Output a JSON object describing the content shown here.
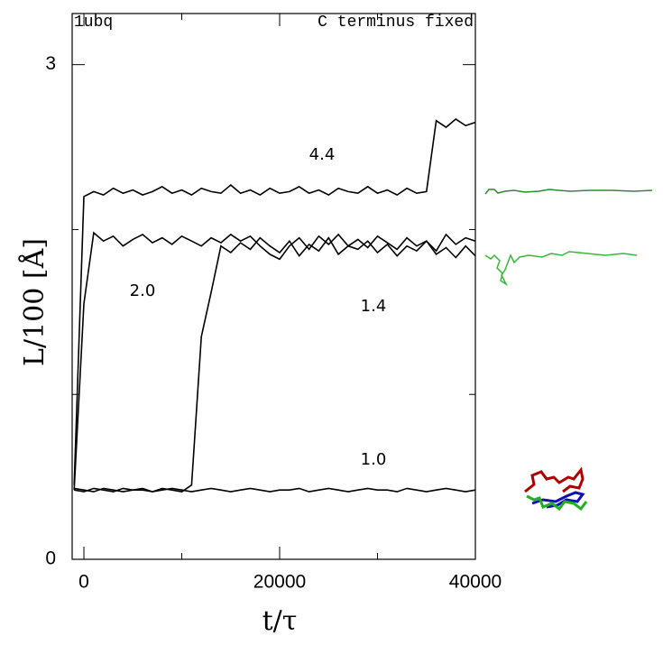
{
  "chart_data": {
    "type": "line",
    "title": "1ubq",
    "subtitle": "C terminus fixed",
    "x_label": "t/τ",
    "y_label": "L/100 [Å]",
    "xlim": [
      -1200,
      40000
    ],
    "ylim": [
      0,
      3.31
    ],
    "xticks": [
      0,
      20000,
      40000
    ],
    "x_minor_ticks": [
      10000,
      30000
    ],
    "yticks": [
      0,
      3
    ],
    "y_minor_ticks": [
      1,
      2
    ],
    "x": [
      -1000,
      0,
      1000,
      2000,
      3000,
      4000,
      5000,
      6000,
      7000,
      8000,
      9000,
      10000,
      11000,
      12000,
      13000,
      14000,
      15000,
      16000,
      17000,
      18000,
      19000,
      20000,
      21000,
      22000,
      23000,
      24000,
      25000,
      26000,
      27000,
      28000,
      29000,
      30000,
      31000,
      32000,
      33000,
      34000,
      35000,
      36000,
      37000,
      38000,
      39000,
      40000
    ],
    "series": [
      {
        "name": "4.4",
        "color": "#000000",
        "values": [
          0.45,
          2.2,
          2.23,
          2.21,
          2.25,
          2.22,
          2.24,
          2.21,
          2.23,
          2.26,
          2.22,
          2.24,
          2.21,
          2.25,
          2.23,
          2.22,
          2.27,
          2.22,
          2.24,
          2.21,
          2.25,
          2.22,
          2.23,
          2.26,
          2.22,
          2.24,
          2.21,
          2.25,
          2.23,
          2.22,
          2.26,
          2.22,
          2.24,
          2.21,
          2.25,
          2.22,
          2.23,
          2.66,
          2.62,
          2.67,
          2.63,
          2.65
        ]
      },
      {
        "name": "2.0",
        "color": "#000000",
        "values": [
          0.42,
          1.55,
          1.98,
          1.93,
          1.96,
          1.9,
          1.94,
          1.97,
          1.92,
          1.95,
          1.91,
          1.96,
          1.93,
          1.9,
          1.95,
          1.92,
          1.97,
          1.93,
          1.96,
          1.9,
          1.85,
          1.82,
          1.9,
          1.95,
          1.88,
          1.96,
          1.91,
          1.97,
          1.9,
          1.94,
          1.89,
          1.96,
          1.92,
          1.88,
          1.95,
          1.9,
          1.93,
          1.87,
          1.97,
          1.91,
          1.95,
          1.93
        ]
      },
      {
        "name": "1.4",
        "color": "#000000",
        "values": [
          0.42,
          0.41,
          0.43,
          0.42,
          0.41,
          0.43,
          0.42,
          0.42,
          0.41,
          0.43,
          0.42,
          0.41,
          0.45,
          1.35,
          1.62,
          1.9,
          1.86,
          1.92,
          1.88,
          1.95,
          1.9,
          1.86,
          1.93,
          1.84,
          1.91,
          1.87,
          1.95,
          1.85,
          1.9,
          1.88,
          1.93,
          1.86,
          1.91,
          1.84,
          1.9,
          1.87,
          1.93,
          1.85,
          1.89,
          1.83,
          1.9,
          1.84
        ]
      },
      {
        "name": "1.0",
        "color": "#000000",
        "values": [
          0.43,
          0.42,
          0.41,
          0.43,
          0.42,
          0.41,
          0.42,
          0.43,
          0.41,
          0.42,
          0.43,
          0.42,
          0.41,
          0.42,
          0.43,
          0.42,
          0.41,
          0.42,
          0.43,
          0.42,
          0.41,
          0.42,
          0.42,
          0.43,
          0.41,
          0.42,
          0.43,
          0.42,
          0.41,
          0.42,
          0.43,
          0.42,
          0.42,
          0.41,
          0.43,
          0.42,
          0.41,
          0.42,
          0.43,
          0.42,
          0.41,
          0.42
        ]
      }
    ]
  }
}
